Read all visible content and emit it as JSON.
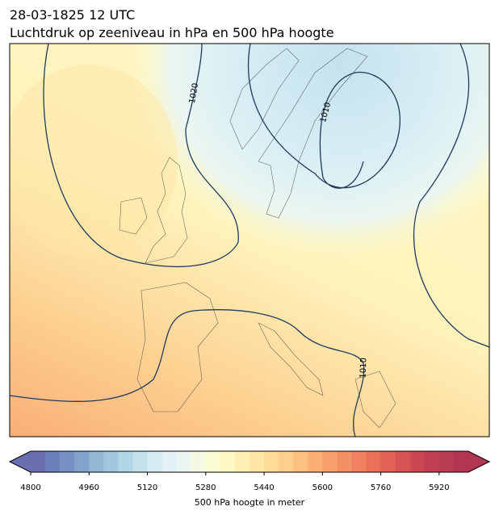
{
  "header": {
    "title": "28-03-1825 12 UTC",
    "subtitle": "Luchtdruk op zeeniveau in hPa en 500 hPa hoogte"
  },
  "isobar_labels": [
    "1020",
    "1010",
    "1010"
  ],
  "colorbar": {
    "label": "500 hPa hoogte in meter",
    "lim": [
      4800,
      6000
    ],
    "ticks": [
      4800,
      4960,
      5120,
      5280,
      5440,
      5600,
      5760,
      5920
    ],
    "colors": [
      "#6a6fb0",
      "#6c80bb",
      "#7891c4",
      "#84a3ca",
      "#92b6d4",
      "#a0c6de",
      "#b2d6e6",
      "#c4e2ee",
      "#d4ecf3",
      "#e2f2f6",
      "#ebf6f2",
      "#f3f9e2",
      "#fafcd2",
      "#fef9c4",
      "#feefb4",
      "#fee6a6",
      "#fedb98",
      "#fdcf8c",
      "#fcc080",
      "#f9af74",
      "#f7a06c",
      "#f49066",
      "#f0805f",
      "#ea705a",
      "#e36056",
      "#d85353",
      "#cc4752",
      "#c03f52",
      "#b83b52",
      "#b0374f"
    ]
  }
}
